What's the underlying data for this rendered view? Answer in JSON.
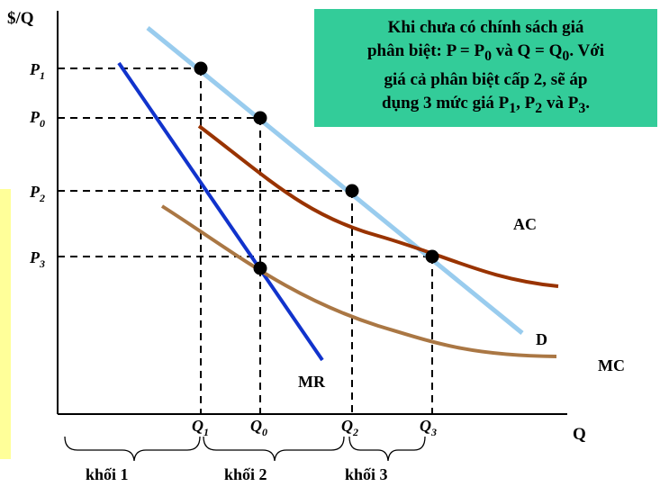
{
  "axis": {
    "y_label": "$/Q",
    "x_label": "Q"
  },
  "prices": [
    {
      "base": "P",
      "sub": "1"
    },
    {
      "base": "P",
      "sub": "0"
    },
    {
      "base": "P",
      "sub": "2"
    },
    {
      "base": "P",
      "sub": "3"
    }
  ],
  "quantities": [
    {
      "base": "Q",
      "sub": "1"
    },
    {
      "base": "Q",
      "sub": "0"
    },
    {
      "base": "Q",
      "sub": "2"
    },
    {
      "base": "Q",
      "sub": "3"
    }
  ],
  "curves": {
    "ac": "AC",
    "d": "D",
    "mc": "MC",
    "mr": "MR"
  },
  "blocks": [
    "khối 1",
    "khối 2",
    "khối 3"
  ],
  "note": {
    "l1": "Khi chưa có chính sách giá",
    "l2a": "phân biệt: P = P",
    "l2b": "0",
    "l2c": " và Q = Q",
    "l2d": "0",
    "l2e": ". Với",
    "l3": "giá cả phân biệt cấp 2, sẽ áp",
    "l4a": "dụng 3 mức giá P",
    "l4b": "1",
    "l4c": ", P",
    "l4d": "2",
    "l4e": " và P",
    "l4f": "3",
    "l4g": "."
  },
  "colors": {
    "demand": "#99ccee",
    "mr": "#1133cc",
    "ac": "#993300",
    "mc": "#aa7744",
    "note_bg": "#33cc99",
    "side_box": "#ffff99"
  }
}
